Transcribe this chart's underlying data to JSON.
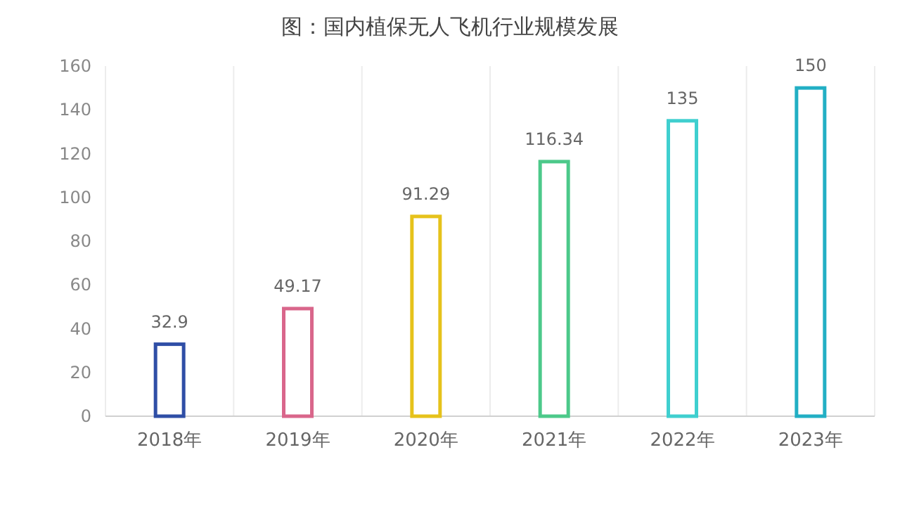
{
  "chart_data": {
    "type": "bar",
    "title": "图：国内植保无人飞机行业规模发展",
    "categories": [
      "2018年",
      "2019年",
      "2020年",
      "2021年",
      "2022年",
      "2023年"
    ],
    "values": [
      32.9,
      49.17,
      91.29,
      116.34,
      135,
      150
    ],
    "colors": [
      "#2f4ea6",
      "#d9668b",
      "#e6c21b",
      "#4cc98a",
      "#3fcfcf",
      "#22afc4"
    ],
    "ylim": [
      0,
      160
    ],
    "yticks": [
      0,
      20,
      40,
      60,
      80,
      100,
      120,
      140,
      160
    ],
    "data_labels": true,
    "grid": "x"
  }
}
